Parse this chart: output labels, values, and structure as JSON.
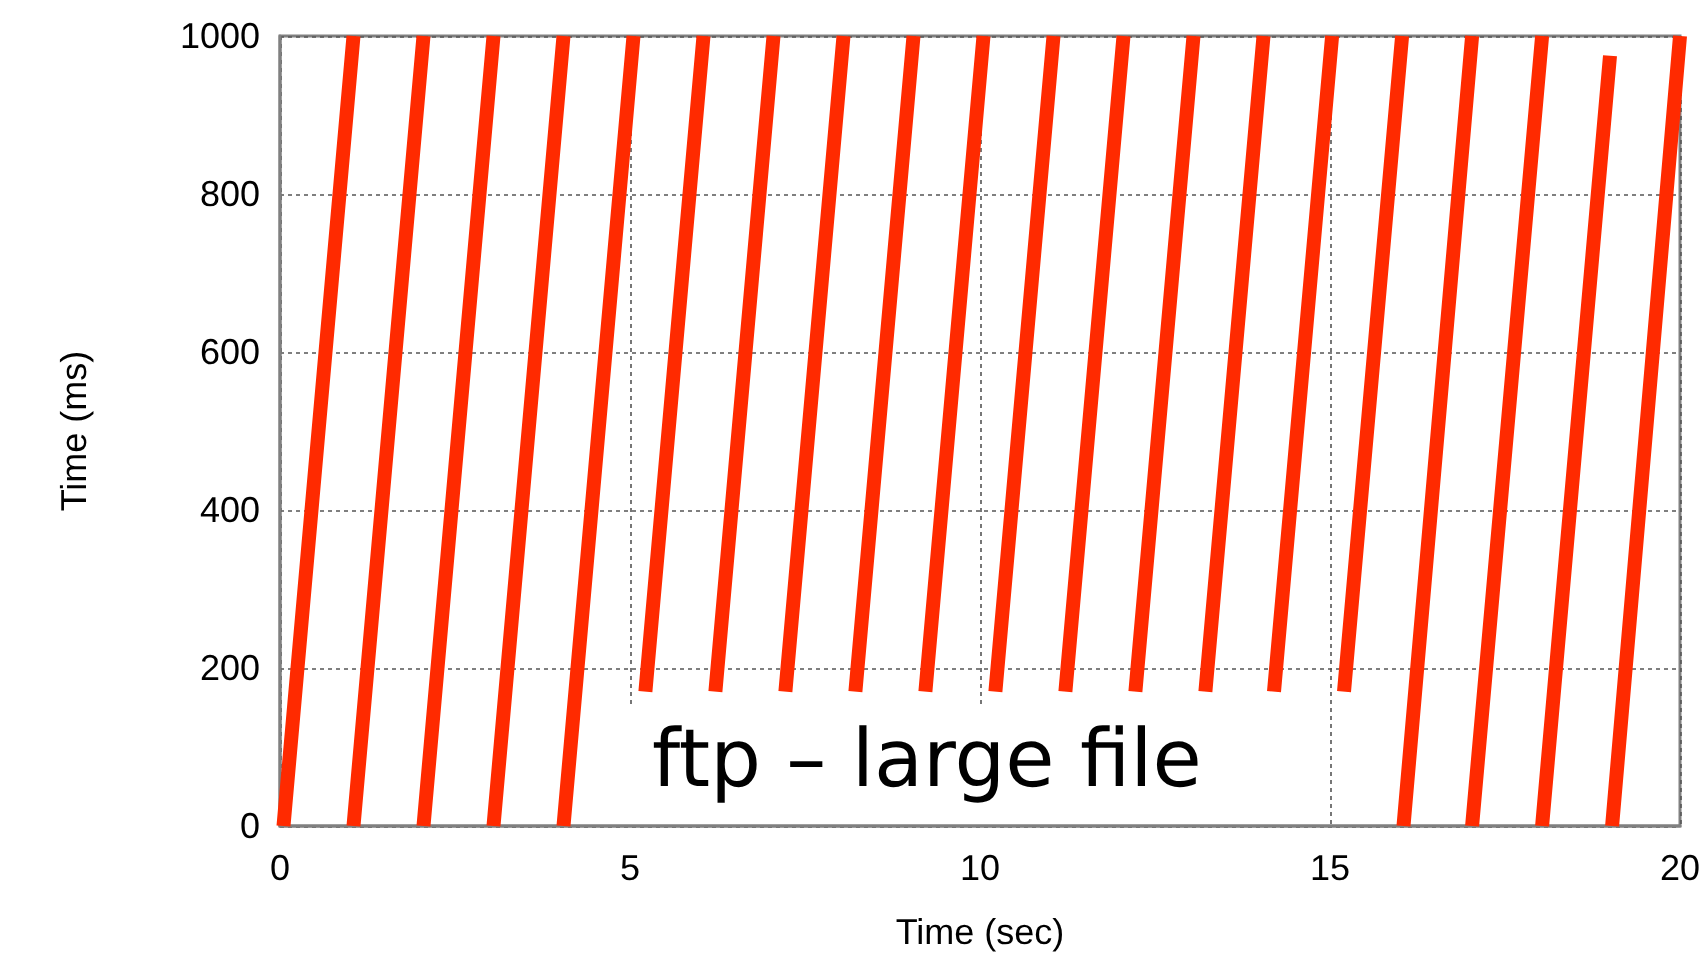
{
  "chart_data": {
    "type": "line",
    "xlabel": "Time (sec)",
    "ylabel": "Time (ms)",
    "annotations": [
      "ftp – large file"
    ],
    "x": [
      0.05,
      1.05,
      null,
      1.05,
      2.05,
      null,
      2.05,
      3.05,
      null,
      3.05,
      4.05,
      null,
      4.05,
      5.05,
      null,
      5.22,
      6.05,
      null,
      6.22,
      7.05,
      null,
      7.22,
      8.05,
      null,
      8.22,
      9.05,
      null,
      9.22,
      10.05,
      null,
      10.22,
      11.05,
      null,
      11.22,
      12.05,
      null,
      12.22,
      13.05,
      null,
      13.22,
      14.05,
      null,
      14.2,
      15.03,
      null,
      15.2,
      16.03,
      null,
      16.05,
      17.03,
      null,
      17.03,
      18.03,
      null,
      18.03,
      19.0,
      null,
      19.03,
      20.0
    ],
    "series": [
      {
        "color": "#ff2a00",
        "values": [
          0,
          1000,
          null,
          0,
          1000,
          null,
          0,
          1000,
          null,
          0,
          1000,
          null,
          0,
          1000,
          null,
          170,
          1000,
          null,
          170,
          1000,
          null,
          170,
          1000,
          null,
          170,
          1000,
          null,
          170,
          1000,
          null,
          170,
          1000,
          null,
          170,
          1000,
          null,
          170,
          1000,
          null,
          170,
          1000,
          null,
          170,
          1000,
          null,
          170,
          1000,
          null,
          0,
          1000,
          null,
          0,
          1000,
          null,
          0,
          975,
          null,
          0,
          1000
        ]
      }
    ],
    "xlim": [
      0,
      20
    ],
    "xticks": [
      0,
      5,
      10,
      15,
      20
    ],
    "ylim": [
      0,
      1000
    ],
    "yticks": [
      0,
      200,
      400,
      600,
      800,
      1000
    ],
    "grid": true,
    "marker": "none",
    "line_style": "solid"
  }
}
